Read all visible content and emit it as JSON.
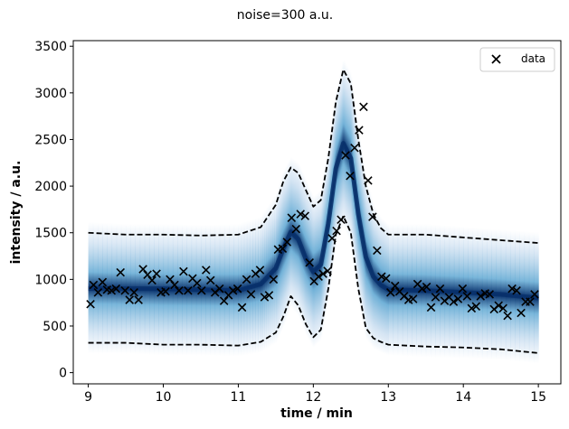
{
  "chart_data": {
    "type": "scatter",
    "title": "noise=300 a.u.",
    "xlabel": "time / min",
    "ylabel": "intensity / a.u.",
    "xlim": [
      8.8,
      15.3
    ],
    "ylim": [
      -120,
      3560
    ],
    "xticks": [
      "9",
      "10",
      "11",
      "12",
      "13",
      "14",
      "15"
    ],
    "yticks": [
      "0",
      "500",
      "1000",
      "1500",
      "2000",
      "2500",
      "3000",
      "3500"
    ],
    "legend": {
      "placement": "top-right",
      "entries": [
        "data"
      ]
    },
    "grid": false,
    "series": [
      {
        "name": "data",
        "marker": "x",
        "x": [
          9.03,
          9.07,
          9.13,
          9.19,
          9.25,
          9.31,
          9.37,
          9.43,
          9.49,
          9.55,
          9.61,
          9.67,
          9.73,
          9.79,
          9.85,
          9.91,
          9.97,
          10.03,
          10.09,
          10.15,
          10.21,
          10.27,
          10.33,
          10.39,
          10.45,
          10.51,
          10.57,
          10.63,
          10.69,
          10.75,
          10.81,
          10.87,
          10.93,
          10.99,
          11.05,
          11.11,
          11.17,
          11.23,
          11.29,
          11.35,
          11.41,
          11.47,
          11.53,
          11.59,
          11.65,
          11.71,
          11.77,
          11.83,
          11.89,
          11.95,
          12.01,
          12.07,
          12.13,
          12.19,
          12.25,
          12.31,
          12.37,
          12.43,
          12.49,
          12.55,
          12.61,
          12.67,
          12.73,
          12.79,
          12.85,
          12.91,
          12.97,
          13.03,
          13.09,
          13.15,
          13.21,
          13.27,
          13.33,
          13.39,
          13.45,
          13.51,
          13.57,
          13.63,
          13.69,
          13.75,
          13.81,
          13.87,
          13.93,
          13.99,
          14.05,
          14.11,
          14.17,
          14.23,
          14.29,
          14.35,
          14.41,
          14.47,
          14.53,
          14.59,
          14.65,
          14.71,
          14.77,
          14.83,
          14.89,
          14.95
        ],
        "y": [
          735,
          940,
          860,
          970,
          890,
          880,
          900,
          1075,
          880,
          780,
          860,
          780,
          1110,
          1050,
          990,
          1060,
          860,
          870,
          1000,
          940,
          880,
          1085,
          880,
          1010,
          960,
          880,
          1100,
          990,
          860,
          900,
          770,
          830,
          880,
          900,
          700,
          1000,
          840,
          1060,
          1100,
          810,
          830,
          1000,
          1320,
          1330,
          1400,
          1660,
          1540,
          1700,
          1680,
          1180,
          980,
          1030,
          1060,
          1090,
          1440,
          1520,
          1640,
          2330,
          2110,
          2410,
          2600,
          2850,
          2060,
          1670,
          1310,
          1030,
          1010,
          860,
          930,
          870,
          820,
          780,
          790,
          950,
          900,
          920,
          700,
          810,
          900,
          770,
          810,
          760,
          790,
          900,
          820,
          690,
          710,
          820,
          850,
          840,
          680,
          720,
          690,
          610,
          900,
          880,
          640,
          760,
          760,
          840
        ]
      },
      {
        "name": "",
        "line_style": "dashed",
        "x": [
          9.0,
          9.5,
          10.0,
          10.5,
          11.0,
          11.3,
          11.5,
          11.6,
          11.7,
          11.8,
          11.9,
          12.0,
          12.1,
          12.2,
          12.3,
          12.4,
          12.5,
          12.6,
          12.7,
          12.8,
          12.9,
          13.0,
          13.5,
          14.0,
          14.5,
          15.0
        ],
        "y": [
          1500,
          1480,
          1480,
          1470,
          1480,
          1560,
          1800,
          2050,
          2200,
          2140,
          1960,
          1780,
          1850,
          2300,
          2900,
          3250,
          3100,
          2500,
          2000,
          1700,
          1550,
          1480,
          1480,
          1450,
          1420,
          1390
        ]
      },
      {
        "name": "",
        "line_style": "dashed",
        "x": [
          9.0,
          9.5,
          10.0,
          10.5,
          11.0,
          11.3,
          11.5,
          11.6,
          11.7,
          11.8,
          11.9,
          12.0,
          12.1,
          12.2,
          12.3,
          12.4,
          12.5,
          12.6,
          12.7,
          12.8,
          12.9,
          13.0,
          13.5,
          14.0,
          14.5,
          15.0
        ],
        "y": [
          320,
          320,
          300,
          300,
          290,
          330,
          430,
          600,
          820,
          720,
          520,
          380,
          460,
          900,
          1480,
          1680,
          1500,
          900,
          480,
          370,
          330,
          300,
          280,
          270,
          250,
          210
        ]
      },
      {
        "name": "",
        "line_style": "band",
        "x": [
          9.0,
          9.5,
          10.0,
          10.5,
          11.0,
          11.3,
          11.5,
          11.6,
          11.7,
          11.8,
          11.9,
          12.0,
          12.1,
          12.2,
          12.3,
          12.4,
          12.5,
          12.6,
          12.7,
          12.8,
          12.9,
          13.0,
          13.5,
          14.0,
          14.5,
          15.0
        ],
        "y": [
          900,
          900,
          900,
          890,
          880,
          950,
          1120,
          1330,
          1510,
          1430,
          1220,
          1080,
          1160,
          1600,
          2190,
          2460,
          2300,
          1700,
          1240,
          1030,
          940,
          890,
          880,
          860,
          840,
          800
        ]
      }
    ]
  }
}
